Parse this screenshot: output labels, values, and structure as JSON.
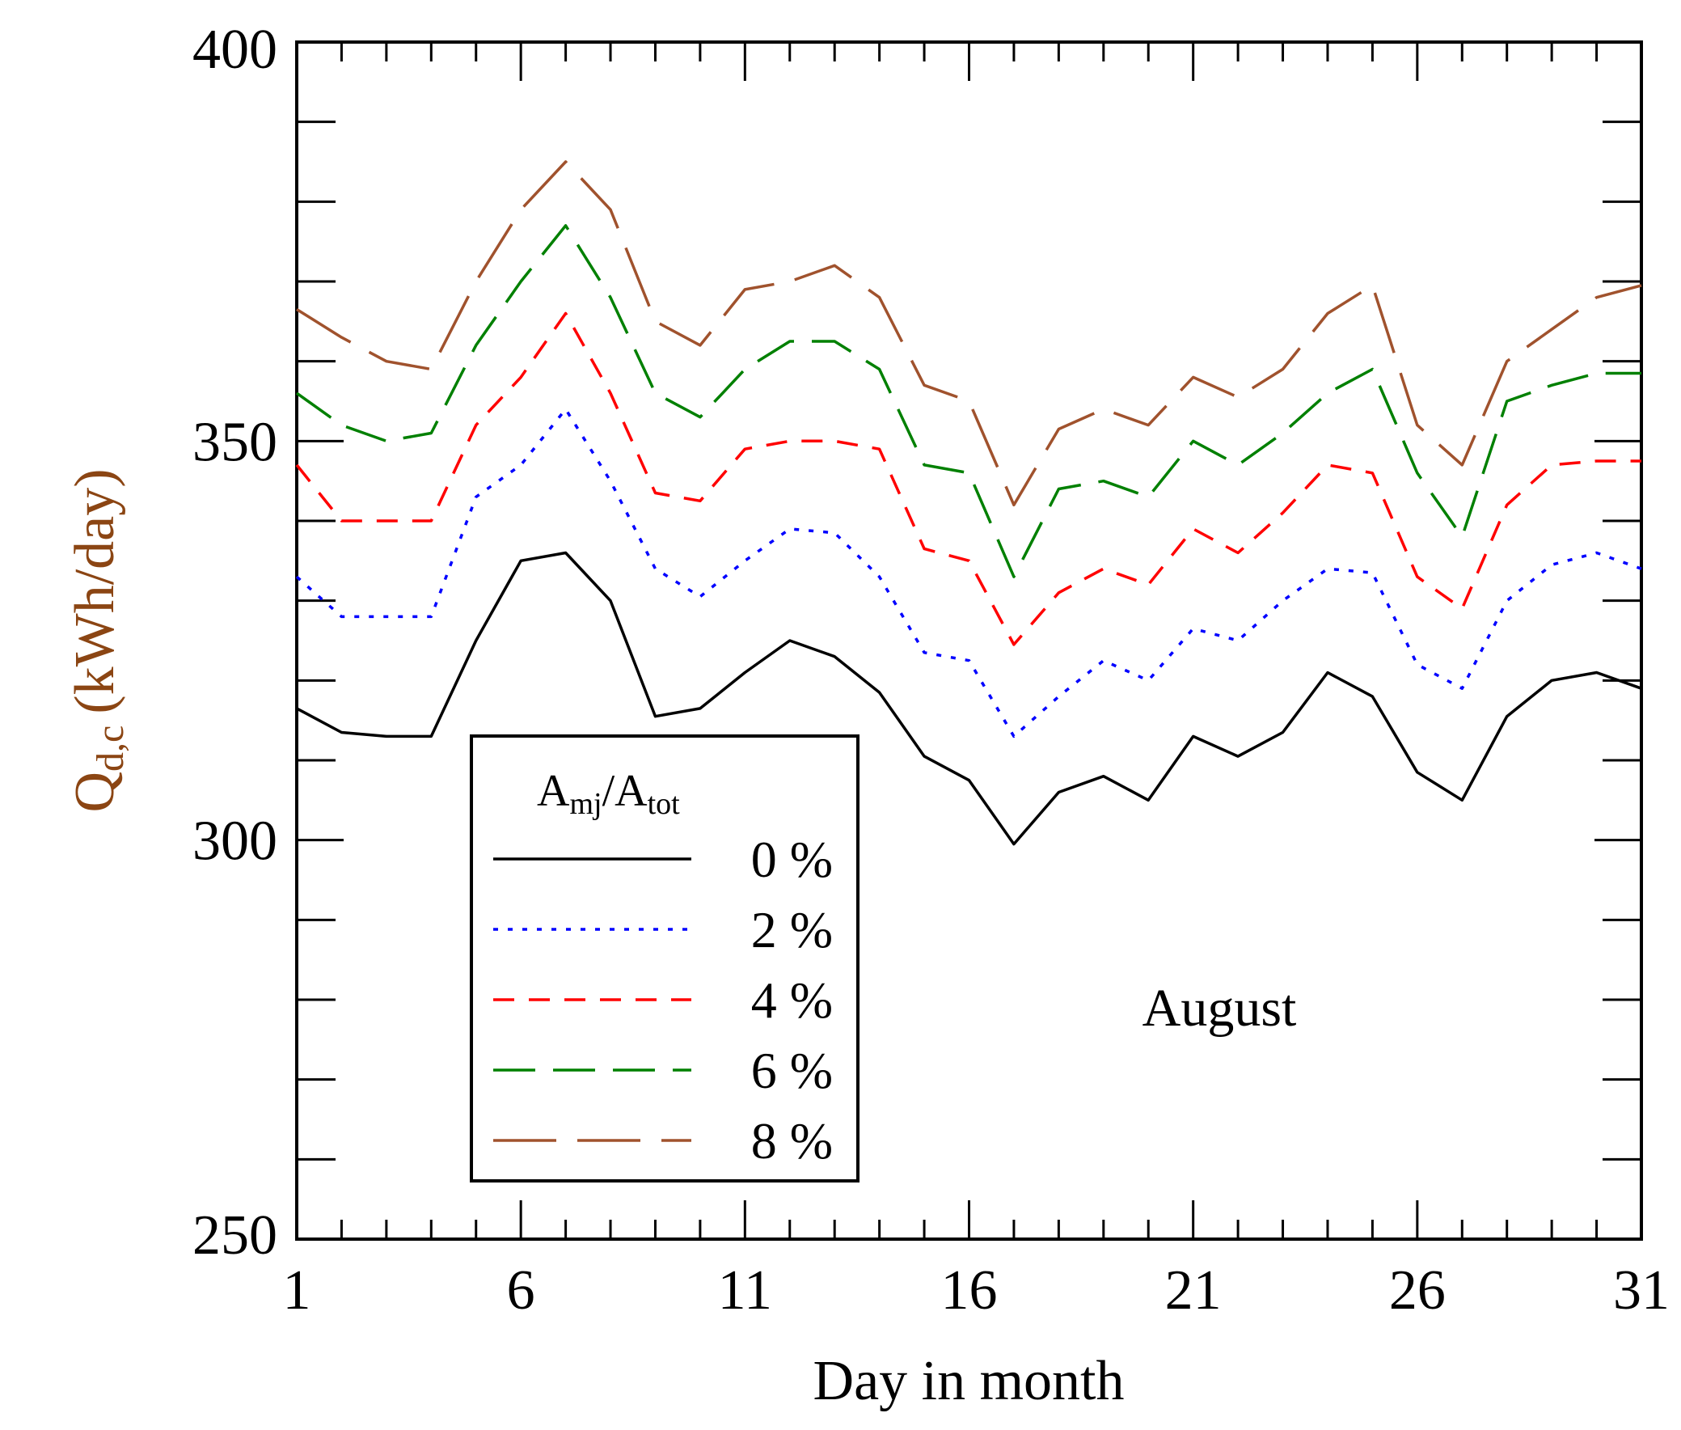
{
  "chart_data": {
    "type": "line",
    "xlabel": "Day in month",
    "ylabel_main": "Q",
    "ylabel_sub": "d,c",
    "ylabel_units": "(kWh/day)",
    "xlim": [
      1,
      31
    ],
    "ylim": [
      250,
      400
    ],
    "x_ticks": [
      1,
      6,
      11,
      16,
      21,
      26,
      31
    ],
    "y_ticks": [
      250,
      300,
      350,
      400
    ],
    "x_minor_step": 1,
    "y_minor_step": 10,
    "grid": false,
    "annotation": "August",
    "legend": {
      "title_main_1": "A",
      "title_sub_1": "mj",
      "title_sep": "/A",
      "title_sub_2": "tot",
      "placement": "lower-left"
    },
    "x": [
      1,
      2,
      3,
      4,
      5,
      6,
      7,
      8,
      9,
      10,
      11,
      12,
      13,
      14,
      15,
      16,
      17,
      18,
      19,
      20,
      21,
      22,
      23,
      24,
      25,
      26,
      27,
      28,
      29,
      30,
      31
    ],
    "series": [
      {
        "name": "0 %",
        "color": "#000000",
        "dash": "solid",
        "values": [
          316.5,
          313.5,
          313,
          313,
          325,
          335,
          336,
          330,
          315.5,
          316.5,
          321,
          325,
          323,
          318.5,
          310.5,
          307.5,
          299.5,
          306,
          308,
          305,
          313,
          310.5,
          313.5,
          321,
          318,
          308.5,
          305,
          315.5,
          320,
          321,
          319
        ]
      },
      {
        "name": "2 %",
        "color": "#0000ff",
        "dash": "dotted",
        "values": [
          333,
          328,
          328,
          328,
          343,
          347,
          354,
          345,
          334,
          330.5,
          335,
          339,
          338.5,
          333,
          323.5,
          322.5,
          313,
          318,
          322.5,
          320,
          326.5,
          325,
          330,
          334,
          333.5,
          322,
          319,
          330,
          334.5,
          336,
          334
        ]
      },
      {
        "name": "4 %",
        "color": "#ff0000",
        "dash": "dashed",
        "values": [
          347,
          340,
          340,
          340,
          352,
          358,
          366,
          356,
          343.5,
          342.5,
          349,
          350,
          350,
          349,
          336.5,
          335,
          324.5,
          331,
          334,
          332,
          339,
          336,
          341,
          347,
          346,
          333,
          329,
          342,
          347,
          347.5,
          347.5
        ]
      },
      {
        "name": "6 %",
        "color": "#008000",
        "dash": "long-dashed",
        "values": [
          356,
          352,
          350,
          351,
          362,
          370,
          377,
          368,
          356,
          353,
          359,
          362.5,
          362.5,
          359,
          347,
          346,
          333,
          344,
          345,
          343,
          350,
          347,
          351,
          356,
          359,
          346,
          338,
          355,
          357,
          358.5,
          358.5
        ]
      },
      {
        "name": "8 %",
        "color": "#a0522d",
        "dash": "very-long-dashed",
        "values": [
          366.5,
          363,
          360,
          359,
          370,
          379,
          385,
          379,
          365,
          362,
          369,
          370,
          372,
          368,
          357,
          355,
          342,
          351.5,
          354,
          352,
          358,
          355.5,
          359,
          366,
          369.5,
          352,
          347,
          360,
          364,
          368,
          369.5
        ]
      }
    ]
  }
}
